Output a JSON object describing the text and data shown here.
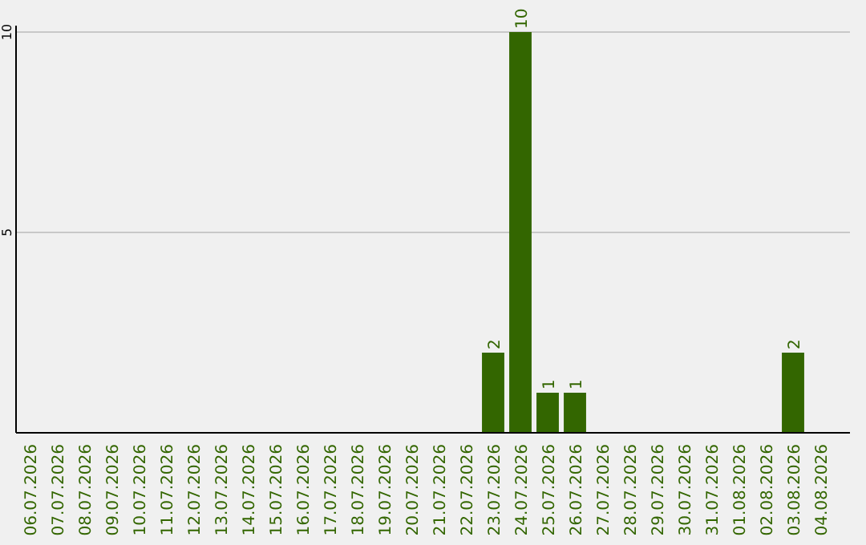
{
  "chart_data": {
    "type": "bar",
    "categories": [
      "06.07.2026",
      "07.07.2026",
      "08.07.2026",
      "09.07.2026",
      "10.07.2026",
      "11.07.2026",
      "12.07.2026",
      "13.07.2026",
      "14.07.2026",
      "15.07.2026",
      "16.07.2026",
      "17.07.2026",
      "18.07.2026",
      "19.07.2026",
      "20.07.2026",
      "21.07.2026",
      "22.07.2026",
      "23.07.2026",
      "24.07.2026",
      "25.07.2026",
      "26.07.2026",
      "27.07.2026",
      "28.07.2026",
      "29.07.2026",
      "30.07.2026",
      "31.07.2026",
      "01.08.2026",
      "02.08.2026",
      "03.08.2026",
      "04.08.2026"
    ],
    "values": [
      0,
      0,
      0,
      0,
      0,
      0,
      0,
      0,
      0,
      0,
      0,
      0,
      0,
      0,
      0,
      0,
      0,
      2,
      10,
      1,
      1,
      0,
      0,
      0,
      0,
      0,
      0,
      0,
      2,
      0
    ],
    "value_labels": [
      null,
      null,
      null,
      null,
      null,
      null,
      null,
      null,
      null,
      null,
      null,
      null,
      null,
      null,
      null,
      null,
      null,
      "2",
      "10",
      "1",
      "1",
      null,
      null,
      null,
      null,
      null,
      null,
      null,
      "2",
      null
    ],
    "color": "#336600",
    "ylim": [
      0,
      10
    ],
    "yticks": [
      {
        "value": 0,
        "label": null
      },
      5,
      10
    ],
    "grid": "y"
  }
}
